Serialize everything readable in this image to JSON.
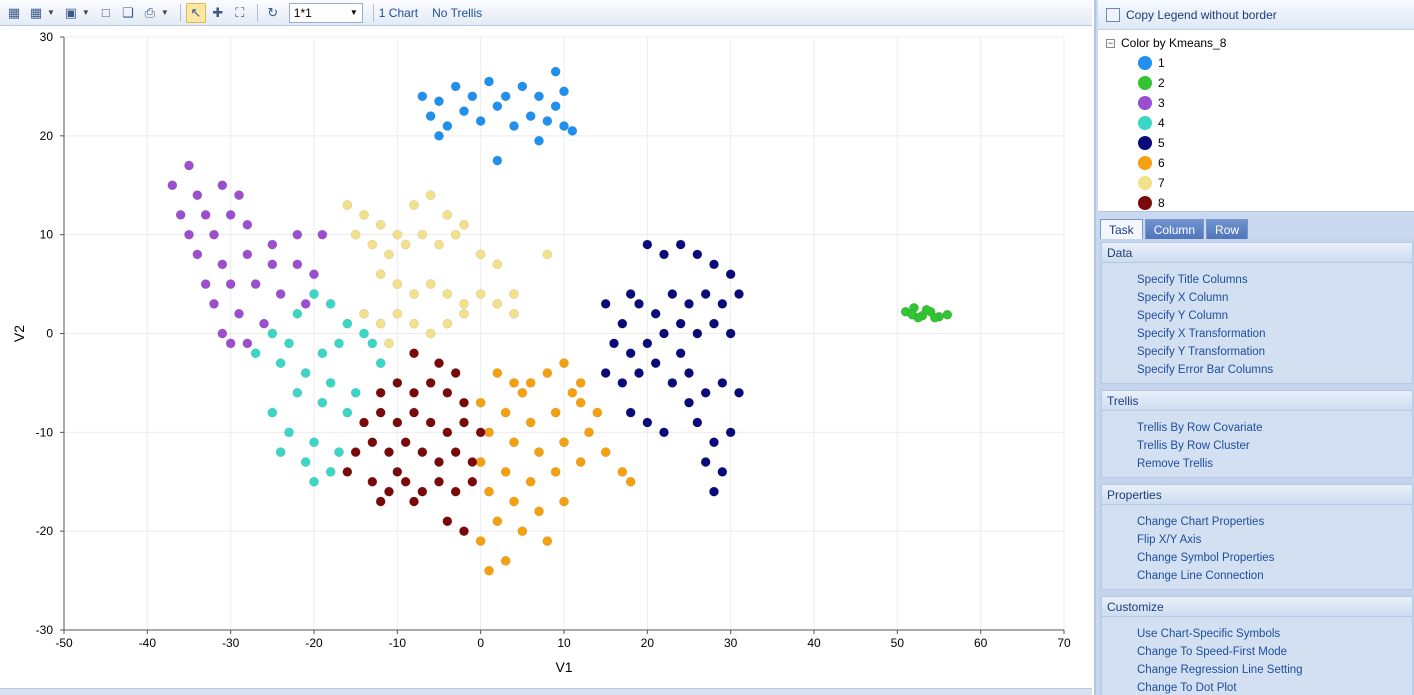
{
  "toolbar": {
    "layout_value": "1*1",
    "chart_count": "1 Chart",
    "trellis_state": "No Trellis",
    "icons": [
      "chart-properties-icon",
      "export-icon",
      "save-icon",
      "copy-icon",
      "copy-all-icon",
      "print-icon",
      "select-icon",
      "zoom-icon",
      "fit-icon",
      "refresh-icon"
    ]
  },
  "legend": {
    "copy_label": "Copy Legend  without border",
    "header": "Color by Kmeans_8",
    "items": [
      {
        "label": "1",
        "color": "#1f8ff0"
      },
      {
        "label": "2",
        "color": "#33c433"
      },
      {
        "label": "3",
        "color": "#9b4fcf"
      },
      {
        "label": "4",
        "color": "#3bd6c6"
      },
      {
        "label": "5",
        "color": "#0a0a7a"
      },
      {
        "label": "6",
        "color": "#f5a00f"
      },
      {
        "label": "7",
        "color": "#f2e08a"
      },
      {
        "label": "8",
        "color": "#7a0a0a"
      }
    ]
  },
  "tabs": [
    "Task",
    "Column",
    "Row"
  ],
  "sections": [
    {
      "title": "Data",
      "tasks": [
        "Specify Title Columns",
        "Specify X Column",
        "Specify Y Column",
        "Specify X Transformation",
        "Specify Y Transformation",
        "Specify Error Bar Columns"
      ]
    },
    {
      "title": "Trellis",
      "tasks": [
        "Trellis By Row Covariate",
        "Trellis By Row Cluster",
        "Remove Trellis"
      ]
    },
    {
      "title": "Properties",
      "tasks": [
        "Change Chart Properties",
        "Flip X/Y Axis",
        "Change Symbol Properties",
        "Change Line Connection"
      ]
    },
    {
      "title": "Customize",
      "tasks": [
        "Use Chart-Specific Symbols",
        "Change To Speed-First Mode",
        "Change Regression Line Setting",
        "Change To Dot Plot"
      ]
    }
  ],
  "chart_data": {
    "type": "scatter",
    "xlabel": "V1",
    "ylabel": "V2",
    "xlim": [
      -50,
      70
    ],
    "ylim": [
      -30,
      30
    ],
    "xticks": [
      -50,
      -40,
      -30,
      -20,
      -10,
      0,
      10,
      20,
      30,
      40,
      50,
      60,
      70
    ],
    "yticks": [
      -30,
      -20,
      -10,
      0,
      10,
      20,
      30
    ],
    "grid": true,
    "series": [
      {
        "name": "1",
        "color": "#1f8ff0",
        "points": [
          [
            -7,
            24
          ],
          [
            -5,
            23.5
          ],
          [
            -3,
            25
          ],
          [
            -1,
            24
          ],
          [
            1,
            25.5
          ],
          [
            3,
            24
          ],
          [
            5,
            25
          ],
          [
            7,
            24
          ],
          [
            9,
            23
          ],
          [
            10,
            24.5
          ],
          [
            -6,
            22
          ],
          [
            -2,
            22.5
          ],
          [
            2,
            23
          ],
          [
            6,
            22
          ],
          [
            8,
            21.5
          ],
          [
            10,
            21
          ],
          [
            -4,
            21
          ],
          [
            0,
            21.5
          ],
          [
            4,
            21
          ],
          [
            9,
            26.5
          ],
          [
            2,
            17.5
          ],
          [
            7,
            19.5
          ],
          [
            11,
            20.5
          ],
          [
            -5,
            20
          ]
        ]
      },
      {
        "name": "2",
        "color": "#33c433",
        "points": [
          [
            51,
            2.2
          ],
          [
            52,
            2.6
          ],
          [
            53,
            1.8
          ],
          [
            54,
            2.2
          ],
          [
            55,
            1.7
          ],
          [
            56,
            1.9
          ],
          [
            52.5,
            1.6
          ],
          [
            53.5,
            2.4
          ],
          [
            54.5,
            1.6
          ],
          [
            51.8,
            1.9
          ]
        ]
      },
      {
        "name": "3",
        "color": "#9b4fcf",
        "points": [
          [
            -35,
            17
          ],
          [
            -37,
            15
          ],
          [
            -34,
            14
          ],
          [
            -31,
            15
          ],
          [
            -29,
            14
          ],
          [
            -36,
            12
          ],
          [
            -33,
            12
          ],
          [
            -30,
            12
          ],
          [
            -35,
            10
          ],
          [
            -32,
            10
          ],
          [
            -28,
            11
          ],
          [
            -25,
            9
          ],
          [
            -22,
            10
          ],
          [
            -19,
            10
          ],
          [
            -34,
            8
          ],
          [
            -31,
            7
          ],
          [
            -28,
            8
          ],
          [
            -25,
            7
          ],
          [
            -22,
            7
          ],
          [
            -20,
            6
          ],
          [
            -33,
            5
          ],
          [
            -30,
            5
          ],
          [
            -27,
            5
          ],
          [
            -24,
            4
          ],
          [
            -21,
            3
          ],
          [
            -32,
            3
          ],
          [
            -29,
            2
          ],
          [
            -26,
            1
          ],
          [
            -31,
            0
          ],
          [
            -28,
            -1
          ],
          [
            -30,
            -1
          ]
        ]
      },
      {
        "name": "4",
        "color": "#3bd6c6",
        "points": [
          [
            -20,
            4
          ],
          [
            -18,
            3
          ],
          [
            -22,
            2
          ],
          [
            -16,
            1
          ],
          [
            -14,
            0
          ],
          [
            -25,
            0
          ],
          [
            -23,
            -1
          ],
          [
            -19,
            -2
          ],
          [
            -17,
            -1
          ],
          [
            -27,
            -2
          ],
          [
            -24,
            -3
          ],
          [
            -21,
            -4
          ],
          [
            -18,
            -5
          ],
          [
            -15,
            -6
          ],
          [
            -22,
            -6
          ],
          [
            -19,
            -7
          ],
          [
            -16,
            -8
          ],
          [
            -25,
            -8
          ],
          [
            -23,
            -10
          ],
          [
            -20,
            -11
          ],
          [
            -17,
            -12
          ],
          [
            -24,
            -12
          ],
          [
            -21,
            -13
          ],
          [
            -18,
            -14
          ],
          [
            -20,
            -15
          ],
          [
            -13,
            -1
          ],
          [
            -12,
            -3
          ]
        ]
      },
      {
        "name": "5",
        "color": "#0a0a7a",
        "points": [
          [
            18,
            4
          ],
          [
            20,
            9
          ],
          [
            22,
            8
          ],
          [
            24,
            9
          ],
          [
            26,
            8
          ],
          [
            28,
            7
          ],
          [
            30,
            6
          ],
          [
            15,
            3
          ],
          [
            17,
            1
          ],
          [
            19,
            3
          ],
          [
            21,
            2
          ],
          [
            23,
            4
          ],
          [
            25,
            3
          ],
          [
            27,
            4
          ],
          [
            29,
            3
          ],
          [
            31,
            4
          ],
          [
            16,
            -1
          ],
          [
            18,
            -2
          ],
          [
            20,
            -1
          ],
          [
            22,
            0
          ],
          [
            24,
            1
          ],
          [
            26,
            0
          ],
          [
            28,
            1
          ],
          [
            30,
            0
          ],
          [
            15,
            -4
          ],
          [
            17,
            -5
          ],
          [
            19,
            -4
          ],
          [
            21,
            -3
          ],
          [
            23,
            -5
          ],
          [
            25,
            -4
          ],
          [
            27,
            -6
          ],
          [
            29,
            -5
          ],
          [
            31,
            -6
          ],
          [
            18,
            -8
          ],
          [
            20,
            -9
          ],
          [
            22,
            -10
          ],
          [
            26,
            -9
          ],
          [
            28,
            -11
          ],
          [
            30,
            -10
          ],
          [
            27,
            -13
          ],
          [
            29,
            -14
          ],
          [
            28,
            -16
          ],
          [
            25,
            -7
          ],
          [
            24,
            -2
          ]
        ]
      },
      {
        "name": "6",
        "color": "#f5a00f",
        "points": [
          [
            2,
            -4
          ],
          [
            4,
            -5
          ],
          [
            6,
            -5
          ],
          [
            8,
            -4
          ],
          [
            10,
            -3
          ],
          [
            12,
            -5
          ],
          [
            0,
            -7
          ],
          [
            3,
            -8
          ],
          [
            6,
            -9
          ],
          [
            9,
            -8
          ],
          [
            12,
            -7
          ],
          [
            14,
            -8
          ],
          [
            1,
            -10
          ],
          [
            4,
            -11
          ],
          [
            7,
            -12
          ],
          [
            10,
            -11
          ],
          [
            13,
            -10
          ],
          [
            15,
            -12
          ],
          [
            0,
            -13
          ],
          [
            3,
            -14
          ],
          [
            6,
            -15
          ],
          [
            9,
            -14
          ],
          [
            12,
            -13
          ],
          [
            1,
            -16
          ],
          [
            4,
            -17
          ],
          [
            7,
            -18
          ],
          [
            10,
            -17
          ],
          [
            2,
            -19
          ],
          [
            5,
            -20
          ],
          [
            8,
            -21
          ],
          [
            0,
            -21
          ],
          [
            3,
            -23
          ],
          [
            1,
            -24
          ],
          [
            17,
            -14
          ],
          [
            18,
            -15
          ],
          [
            5,
            -6
          ],
          [
            11,
            -6
          ]
        ]
      },
      {
        "name": "7",
        "color": "#f2e08a",
        "points": [
          [
            -16,
            13
          ],
          [
            -14,
            12
          ],
          [
            -12,
            11
          ],
          [
            -10,
            10
          ],
          [
            -8,
            13
          ],
          [
            -6,
            14
          ],
          [
            -4,
            12
          ],
          [
            -2,
            11
          ],
          [
            -15,
            10
          ],
          [
            -13,
            9
          ],
          [
            -11,
            8
          ],
          [
            -9,
            9
          ],
          [
            -7,
            10
          ],
          [
            -5,
            9
          ],
          [
            -3,
            10
          ],
          [
            0,
            8
          ],
          [
            2,
            7
          ],
          [
            -12,
            6
          ],
          [
            -10,
            5
          ],
          [
            -8,
            4
          ],
          [
            -6,
            5
          ],
          [
            -4,
            4
          ],
          [
            -2,
            3
          ],
          [
            0,
            4
          ],
          [
            2,
            3
          ],
          [
            4,
            2
          ],
          [
            -14,
            2
          ],
          [
            -12,
            1
          ],
          [
            -10,
            2
          ],
          [
            -8,
            1
          ],
          [
            -6,
            0
          ],
          [
            -4,
            1
          ],
          [
            -2,
            2
          ],
          [
            8,
            8
          ],
          [
            4,
            4
          ],
          [
            -11,
            -1
          ]
        ]
      },
      {
        "name": "8",
        "color": "#7a0a0a",
        "points": [
          [
            -8,
            -2
          ],
          [
            -5,
            -3
          ],
          [
            -3,
            -4
          ],
          [
            -12,
            -6
          ],
          [
            -10,
            -5
          ],
          [
            -8,
            -6
          ],
          [
            -6,
            -5
          ],
          [
            -4,
            -6
          ],
          [
            -2,
            -7
          ],
          [
            -14,
            -9
          ],
          [
            -12,
            -8
          ],
          [
            -10,
            -9
          ],
          [
            -8,
            -8
          ],
          [
            -6,
            -9
          ],
          [
            -4,
            -10
          ],
          [
            -2,
            -9
          ],
          [
            0,
            -10
          ],
          [
            -15,
            -12
          ],
          [
            -13,
            -11
          ],
          [
            -11,
            -12
          ],
          [
            -9,
            -11
          ],
          [
            -7,
            -12
          ],
          [
            -5,
            -13
          ],
          [
            -3,
            -12
          ],
          [
            -1,
            -13
          ],
          [
            -16,
            -14
          ],
          [
            -13,
            -15
          ],
          [
            -11,
            -16
          ],
          [
            -9,
            -15
          ],
          [
            -7,
            -16
          ],
          [
            -5,
            -15
          ],
          [
            -3,
            -16
          ],
          [
            -1,
            -15
          ],
          [
            -12,
            -17
          ],
          [
            -8,
            -17
          ],
          [
            -4,
            -19
          ],
          [
            -2,
            -20
          ],
          [
            -10,
            -14
          ]
        ]
      }
    ]
  }
}
